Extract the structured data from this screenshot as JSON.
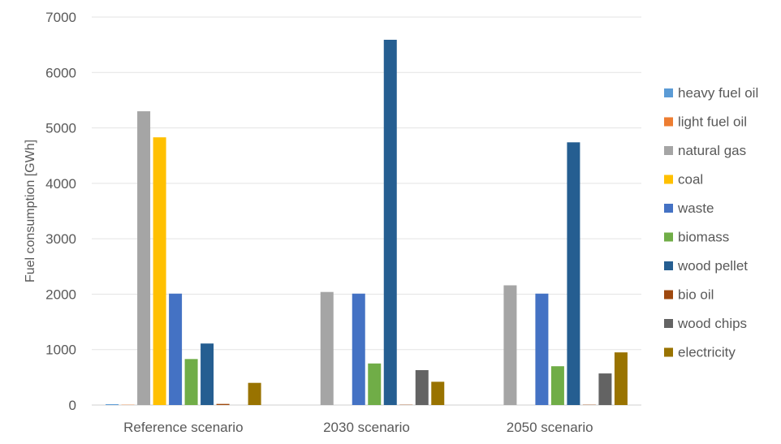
{
  "chart_data": {
    "type": "bar",
    "ylabel": "Fuel consumption [GWh]",
    "xlabel": "",
    "ylim": [
      0,
      7000
    ],
    "yticks": [
      0,
      1000,
      2000,
      3000,
      4000,
      5000,
      6000,
      7000
    ],
    "grid": true,
    "legend_position": "right",
    "categories": [
      "Reference scenario",
      "2030 scenario",
      "2050 scenario"
    ],
    "series": [
      {
        "name": "heavy fuel oil",
        "color": "#5B9BD5",
        "values": [
          15,
          0,
          0
        ]
      },
      {
        "name": "light fuel oil",
        "color": "#ED7D31",
        "values": [
          5,
          0,
          0
        ]
      },
      {
        "name": "natural gas",
        "color": "#A5A5A5",
        "values": [
          5300,
          2040,
          2160
        ]
      },
      {
        "name": "coal",
        "color": "#FFC000",
        "values": [
          4830,
          0,
          0
        ]
      },
      {
        "name": "waste",
        "color": "#4472C4",
        "values": [
          2010,
          2010,
          2010
        ]
      },
      {
        "name": "biomass",
        "color": "#70AD47",
        "values": [
          830,
          750,
          700
        ]
      },
      {
        "name": "wood pellet",
        "color": "#255E91",
        "values": [
          1110,
          6590,
          4740
        ]
      },
      {
        "name": "bio oil",
        "color": "#9E480E",
        "values": [
          20,
          5,
          5
        ]
      },
      {
        "name": "wood chips",
        "color": "#636363",
        "values": [
          0,
          630,
          570
        ]
      },
      {
        "name": "electricity",
        "color": "#997300",
        "values": [
          400,
          420,
          950
        ]
      }
    ]
  }
}
